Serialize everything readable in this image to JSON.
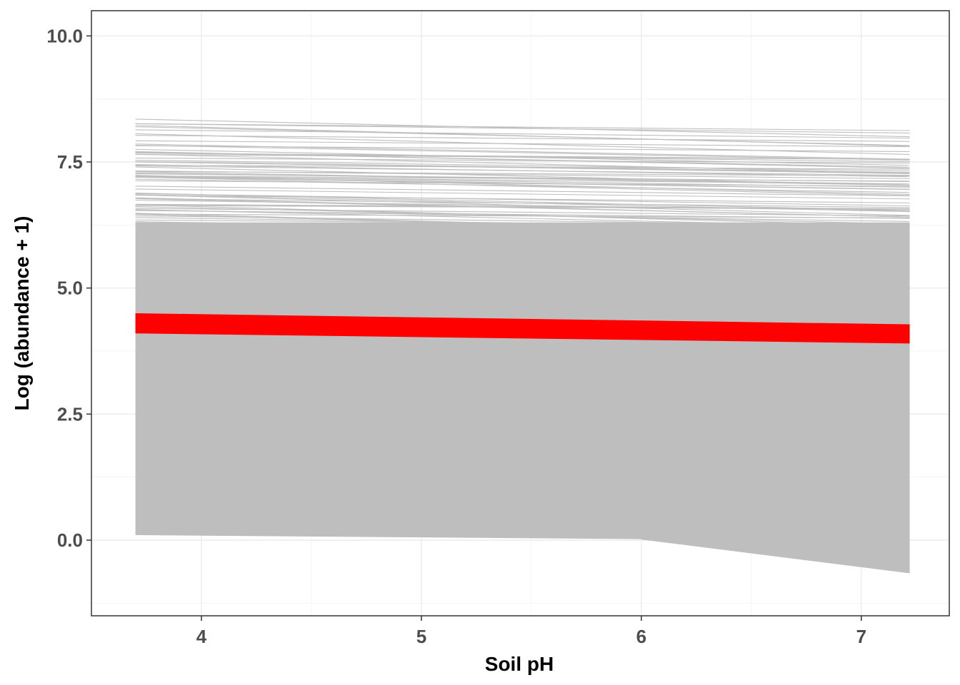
{
  "chart_data": {
    "type": "line",
    "title": "",
    "xlabel": "Soil pH",
    "ylabel": "Log (abundance + 1)",
    "xlim": [
      3.5,
      7.4
    ],
    "ylim": [
      -1.5,
      10.5
    ],
    "x_ticks": [
      4,
      5,
      6,
      7
    ],
    "x_tick_labels": [
      "4",
      "5",
      "6",
      "7"
    ],
    "y_ticks": [
      0.0,
      2.5,
      5.0,
      7.5,
      10.0
    ],
    "y_tick_labels": [
      "0.0",
      "2.5",
      "5.0",
      "7.5",
      "10.0"
    ],
    "grid": true,
    "x_range_of_lines": [
      3.7,
      7.22
    ],
    "series": [
      {
        "role": "individual fits (gray band)",
        "color": "#bebebe",
        "lower_envelope": [
          {
            "x": 3.7,
            "y": 0.1
          },
          {
            "x": 6.0,
            "y": 0.02
          },
          {
            "x": 7.22,
            "y": -0.65
          }
        ],
        "upper_envelope": [
          {
            "x": 3.7,
            "y": 8.35
          },
          {
            "x": 7.22,
            "y": 8.0
          }
        ],
        "dense_region": [
          {
            "x": 3.7,
            "y": 6.3
          },
          {
            "x": 7.22,
            "y": 6.3
          }
        ]
      },
      {
        "role": "mean fit (red band)",
        "color": "#ff0000",
        "upper": [
          {
            "x": 3.7,
            "y": 4.5
          },
          {
            "x": 7.22,
            "y": 4.28
          }
        ],
        "lower": [
          {
            "x": 3.7,
            "y": 4.1
          },
          {
            "x": 7.22,
            "y": 3.9
          }
        ]
      }
    ]
  }
}
